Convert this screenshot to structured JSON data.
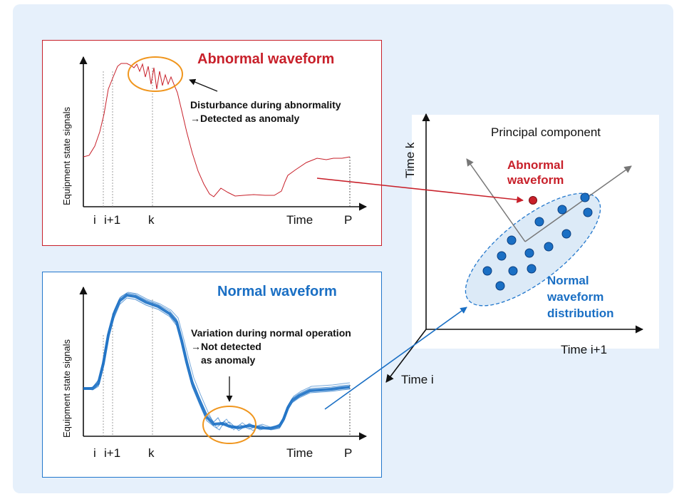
{
  "abnormal_panel": {
    "title": "Abnormal waveform",
    "y_label": "Equipment state signals",
    "annotation_line1": "Disturbance during abnormality",
    "annotation_line2": "→Detected as anomaly",
    "x_ticks": [
      "i",
      "i+1",
      "k",
      "Time",
      "P"
    ]
  },
  "normal_panel": {
    "title": "Normal waveform",
    "y_label": "Equipment state signals",
    "annotation_line1": "Variation during normal operation",
    "annotation_line2": "→Not detected",
    "annotation_line3": "as anomaly",
    "x_ticks": [
      "i",
      "i+1",
      "k",
      "Time",
      "P"
    ]
  },
  "pca_panel": {
    "principal_component_label": "Principal component",
    "y_axis_label": "Time   k",
    "x_axis_label": "Time   i+1",
    "z_axis_label": "Time   i",
    "abnormal_label_line1": "Abnormal",
    "abnormal_label_line2": "waveform",
    "normal_label_line1": "Normal",
    "normal_label_line2": "waveform",
    "normal_label_line3": "distribution"
  },
  "colors": {
    "abnormal": "#c8202a",
    "normal": "#1a6fc4",
    "highlight_ellipse": "#f0961e",
    "background": "#e6f0fb"
  }
}
